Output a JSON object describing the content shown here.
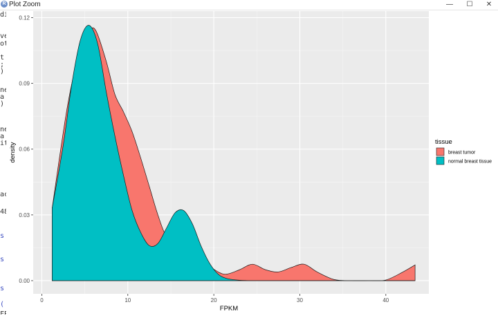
{
  "window": {
    "title": "Plot Zoom",
    "app_icon_letter": "R",
    "minimize": "—",
    "maximize": "☐",
    "close": "✕"
  },
  "side_snippets": [
    "di",
    "ve",
    "ot",
    "t",
    ";",
    ")",
    "ne",
    "a",
    ")",
    "ne",
    "a",
    "it",
    "ac",
    "48",
    "s (",
    "s (",
    "s (",
    "(",
    "FPKM"
  ],
  "colors": {
    "tumor": "#F8766D",
    "normal": "#00BFC4",
    "panel": "#EBEBEB",
    "grid_major": "#FFFFFF",
    "grid_minor": "#F5F5F5"
  },
  "chart_data": {
    "type": "area",
    "xlabel": "FPKM",
    "ylabel": "density",
    "xlim": [
      -1,
      45
    ],
    "ylim": [
      -0.006,
      0.123
    ],
    "xticks": [
      0,
      10,
      20,
      30,
      40
    ],
    "xtick_labels": [
      "0",
      "10",
      "20",
      "30",
      "40"
    ],
    "yticks": [
      0.0,
      0.03,
      0.06,
      0.09,
      0.12
    ],
    "ytick_labels": [
      "0.00",
      "0.03",
      "0.06",
      "0.09",
      "0.12"
    ],
    "grid": true,
    "legend": {
      "title": "tissue",
      "position": "right",
      "entries": [
        "breast tumor",
        "normal breast tissue"
      ]
    },
    "series": [
      {
        "name": "breast tumor",
        "color": "#F8766D",
        "x": [
          1.2,
          3,
          4.5,
          5.5,
          6.3,
          7.5,
          8.5,
          9.5,
          10.5,
          11.5,
          12.5,
          13.5,
          14.5,
          16,
          17.5,
          19,
          20.5,
          21.5,
          23,
          24.5,
          26,
          27.5,
          29,
          30.5,
          32,
          34,
          36,
          38,
          40,
          42,
          43.4
        ],
        "y": [
          0.033,
          0.08,
          0.106,
          0.114,
          0.114,
          0.1,
          0.085,
          0.077,
          0.068,
          0.056,
          0.043,
          0.03,
          0.02,
          0.014,
          0.012,
          0.008,
          0.004,
          0.003,
          0.005,
          0.0075,
          0.005,
          0.004,
          0.006,
          0.0075,
          0.004,
          0.0005,
          0.0,
          0.0,
          0.0003,
          0.004,
          0.0072
        ]
      },
      {
        "name": "normal breast tissue",
        "color": "#00BFC4",
        "x": [
          1.2,
          2.5,
          3.5,
          4.5,
          5.5,
          6.5,
          7.5,
          8.5,
          9.5,
          10.5,
          11.5,
          12.5,
          13.5,
          14.5,
          15.5,
          16.5,
          17.5,
          18.5,
          19.5,
          20.5,
          21.5,
          23,
          25,
          28,
          32,
          36,
          40,
          43.4
        ],
        "y": [
          0.033,
          0.062,
          0.09,
          0.11,
          0.1165,
          0.108,
          0.086,
          0.066,
          0.048,
          0.032,
          0.022,
          0.016,
          0.017,
          0.024,
          0.031,
          0.032,
          0.026,
          0.016,
          0.008,
          0.003,
          0.001,
          0.0002,
          0.0,
          0.0,
          0.0,
          0.0,
          0.0,
          0.0
        ]
      }
    ]
  }
}
